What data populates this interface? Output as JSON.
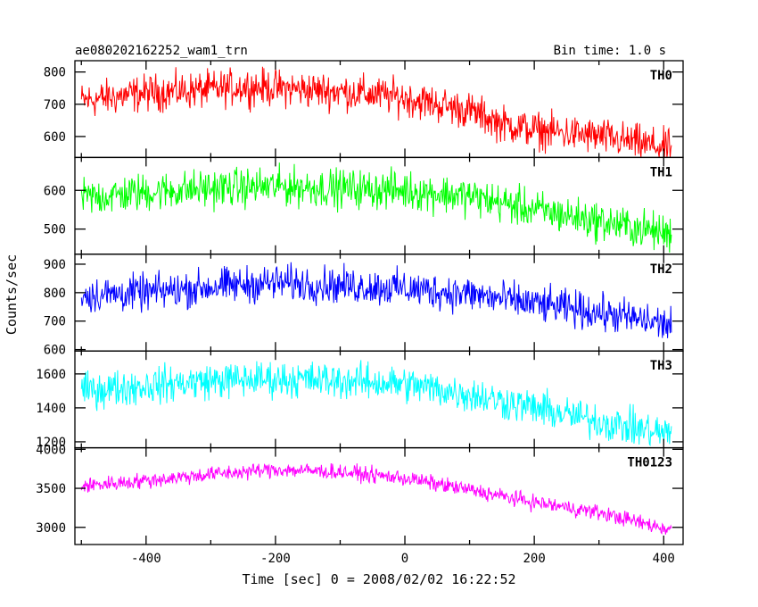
{
  "header": {
    "title": "ae080202162252_wam1_trn",
    "bin_time": "Bin time: 1.0 s"
  },
  "axes": {
    "ylabel": "Counts/sec",
    "xlabel": "Time [sec] 0 = 2008/02/02 16:22:52",
    "xlim": [
      -510,
      430
    ],
    "xticks": [
      -400,
      -200,
      0,
      200,
      400
    ]
  },
  "chart_data": [
    {
      "type": "line",
      "name": "TH0",
      "color": "#ff0000",
      "ylim": [
        535,
        835
      ],
      "yticks": [
        600,
        700,
        800
      ],
      "x": [
        -500,
        -400,
        -300,
        -250,
        -200,
        -100,
        0,
        100,
        150,
        200,
        300,
        400
      ],
      "y": [
        710,
        735,
        745,
        755,
        750,
        740,
        720,
        680,
        640,
        620,
        600,
        565
      ],
      "noise": 40
    },
    {
      "type": "line",
      "name": "TH1",
      "color": "#00ff00",
      "ylim": [
        435,
        685
      ],
      "yticks": [
        500,
        600
      ],
      "x": [
        -500,
        -400,
        -300,
        -200,
        -100,
        0,
        100,
        200,
        300,
        400
      ],
      "y": [
        580,
        595,
        605,
        610,
        605,
        600,
        585,
        550,
        520,
        490
      ],
      "noise": 35
    },
    {
      "type": "line",
      "name": "TH2",
      "color": "#0000ff",
      "ylim": [
        595,
        935
      ],
      "yticks": [
        600,
        700,
        800,
        900
      ],
      "x": [
        -500,
        -400,
        -300,
        -200,
        -100,
        0,
        100,
        200,
        300,
        400
      ],
      "y": [
        790,
        800,
        820,
        835,
        825,
        815,
        795,
        760,
        730,
        690
      ],
      "noise": 45
    },
    {
      "type": "line",
      "name": "TH3",
      "color": "#00ffff",
      "ylim": [
        1165,
        1735
      ],
      "yticks": [
        1200,
        1400,
        1600
      ],
      "x": [
        -500,
        -400,
        -300,
        -200,
        -100,
        0,
        100,
        200,
        300,
        400
      ],
      "y": [
        1500,
        1530,
        1560,
        1570,
        1560,
        1540,
        1480,
        1400,
        1320,
        1250
      ],
      "noise": 75
    },
    {
      "type": "line",
      "name": "TH0123",
      "color": "#ff00ff",
      "ylim": [
        2780,
        4020
      ],
      "yticks": [
        3000,
        3500,
        4000
      ],
      "x": [
        -500,
        -400,
        -300,
        -200,
        -100,
        0,
        100,
        150,
        200,
        300,
        400
      ],
      "y": [
        3530,
        3600,
        3680,
        3740,
        3710,
        3630,
        3480,
        3400,
        3320,
        3190,
        2990
      ],
      "noise": 70
    }
  ]
}
